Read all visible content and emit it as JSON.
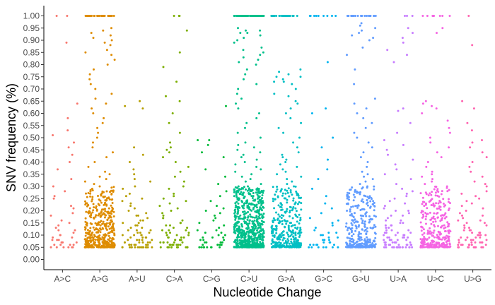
{
  "chart_data": {
    "type": "scatter",
    "title": "",
    "xlabel": "Nucleotide Change",
    "ylabel": "SNV frequency (%)",
    "categories": [
      "A>C",
      "A>G",
      "A>U",
      "C>A",
      "C>G",
      "C>U",
      "G>A",
      "G>C",
      "G>U",
      "U>A",
      "U>C",
      "U>G"
    ],
    "ylim": [
      0,
      1.04
    ],
    "yticks": [
      "0.00",
      "0.05",
      "0.10",
      "0.15",
      "0.20",
      "0.25",
      "0.30",
      "0.35",
      "0.40",
      "0.45",
      "0.50",
      "0.55",
      "0.60",
      "0.65",
      "0.70",
      "0.75",
      "0.80",
      "0.85",
      "0.90",
      "0.95",
      "1.00"
    ],
    "grid": false,
    "legend": "none",
    "colors": [
      "#F8766D",
      "#DE8C00",
      "#B79F00",
      "#7CAE00",
      "#00BA38",
      "#00C08B",
      "#00BFC4",
      "#00B4F0",
      "#619CFF",
      "#C77CFF",
      "#F564E3",
      "#FF64B0"
    ],
    "series": [
      {
        "category": "A>C",
        "y": [
          1.0,
          1.0,
          0.89,
          0.64,
          0.58,
          0.53,
          0.51,
          0.48,
          0.46,
          0.43,
          0.4,
          0.37,
          0.33,
          0.3,
          0.28,
          0.26,
          0.25,
          0.22,
          0.21,
          0.19,
          0.18,
          0.16,
          0.15,
          0.14,
          0.13,
          0.12,
          0.12,
          0.11,
          0.1,
          0.1,
          0.09,
          0.09,
          0.08,
          0.08,
          0.08,
          0.07,
          0.07,
          0.07,
          0.06,
          0.06,
          0.06,
          0.06,
          0.05,
          0.05,
          0.05,
          0.05,
          0.05,
          0.05
        ]
      },
      {
        "category": "A>U",
        "y": [
          0.65,
          0.63,
          0.62,
          0.46,
          0.43,
          0.4,
          0.37,
          0.35,
          0.33,
          0.32,
          0.3,
          0.29,
          0.27,
          0.26,
          0.25,
          0.24,
          0.23,
          0.22,
          0.21,
          0.2,
          0.19,
          0.18,
          0.18,
          0.17,
          0.16,
          0.16,
          0.15,
          0.15,
          0.14,
          0.14,
          0.13,
          0.13,
          0.12,
          0.12,
          0.12,
          0.11,
          0.11,
          0.11,
          0.1,
          0.1,
          0.1,
          0.1,
          0.09,
          0.09,
          0.09,
          0.09,
          0.08,
          0.08,
          0.08,
          0.08,
          0.08,
          0.07,
          0.07,
          0.07,
          0.07,
          0.07,
          0.07,
          0.06,
          0.06,
          0.06,
          0.06,
          0.06,
          0.06,
          0.06,
          0.06,
          0.05,
          0.05,
          0.05,
          0.05,
          0.05,
          0.05,
          0.05,
          0.05,
          0.05,
          0.05,
          0.05,
          0.05,
          0.05,
          0.05,
          0.05
        ]
      },
      {
        "category": "C>A",
        "y": [
          1.0,
          1.0,
          1.0,
          0.94,
          0.85,
          0.79,
          0.73,
          0.67,
          0.65,
          0.6,
          0.56,
          0.52,
          0.48,
          0.46,
          0.45,
          0.44,
          0.42,
          0.4,
          0.38,
          0.36,
          0.34,
          0.32,
          0.3,
          0.29,
          0.27,
          0.26,
          0.25,
          0.24,
          0.23,
          0.22,
          0.21,
          0.2,
          0.19,
          0.18,
          0.17,
          0.17,
          0.16,
          0.15,
          0.15,
          0.14,
          0.14,
          0.13,
          0.13,
          0.12,
          0.12,
          0.12,
          0.11,
          0.11,
          0.11,
          0.1,
          0.1,
          0.1,
          0.1,
          0.09,
          0.09,
          0.09,
          0.09,
          0.08,
          0.08,
          0.08,
          0.08,
          0.08,
          0.07,
          0.07,
          0.07,
          0.07,
          0.07,
          0.07,
          0.06,
          0.06,
          0.06,
          0.06,
          0.06,
          0.06,
          0.06,
          0.06,
          0.05,
          0.05,
          0.05,
          0.05,
          0.05,
          0.05,
          0.05,
          0.05,
          0.05,
          0.05,
          0.05,
          0.05
        ]
      },
      {
        "category": "C>G",
        "y": [
          0.63,
          0.49,
          0.49,
          0.47,
          0.44,
          0.42,
          0.37,
          0.34,
          0.31,
          0.28,
          0.26,
          0.24,
          0.22,
          0.21,
          0.2,
          0.19,
          0.18,
          0.17,
          0.16,
          0.15,
          0.14,
          0.13,
          0.12,
          0.12,
          0.11,
          0.11,
          0.1,
          0.1,
          0.09,
          0.09,
          0.09,
          0.08,
          0.08,
          0.08,
          0.07,
          0.07,
          0.07,
          0.07,
          0.06,
          0.06,
          0.06,
          0.06,
          0.06,
          0.06,
          0.05,
          0.05,
          0.05,
          0.05,
          0.05,
          0.05,
          0.05,
          0.05
        ]
      },
      {
        "category": "G>C",
        "y": [
          1.0,
          1.0,
          1.0,
          1.0,
          1.0,
          1.0,
          1.0,
          1.0,
          1.0,
          0.81,
          0.62,
          0.6,
          0.5,
          0.46,
          0.41,
          0.37,
          0.33,
          0.29,
          0.26,
          0.23,
          0.21,
          0.19,
          0.17,
          0.16,
          0.15,
          0.14,
          0.13,
          0.12,
          0.11,
          0.11,
          0.1,
          0.1,
          0.09,
          0.09,
          0.08,
          0.08,
          0.08,
          0.07,
          0.07,
          0.07,
          0.06,
          0.06,
          0.06,
          0.06,
          0.06,
          0.05,
          0.05,
          0.05,
          0.05,
          0.05,
          0.05,
          0.05
        ]
      },
      {
        "category": "U>A",
        "y": [
          1.0,
          1.0,
          1.0,
          0.95,
          0.93,
          0.91,
          0.89,
          0.86,
          0.84,
          0.81,
          0.62,
          0.61,
          0.56,
          0.52,
          0.49,
          0.47,
          0.45,
          0.43,
          0.41,
          0.39,
          0.37,
          0.35,
          0.33,
          0.31,
          0.29,
          0.28,
          0.27,
          0.26,
          0.25,
          0.24,
          0.23,
          0.22,
          0.21,
          0.2,
          0.2,
          0.19,
          0.18,
          0.18,
          0.17,
          0.16,
          0.16,
          0.15,
          0.15,
          0.14,
          0.14,
          0.14,
          0.13,
          0.13,
          0.12,
          0.12,
          0.12,
          0.11,
          0.11,
          0.11,
          0.11,
          0.1,
          0.1,
          0.1,
          0.1,
          0.09,
          0.09,
          0.09,
          0.09,
          0.09,
          0.08,
          0.08,
          0.08,
          0.08,
          0.08,
          0.08,
          0.07,
          0.07,
          0.07,
          0.07,
          0.07,
          0.07,
          0.07,
          0.06,
          0.06,
          0.06,
          0.06,
          0.06,
          0.06,
          0.06,
          0.06,
          0.06,
          0.05,
          0.05,
          0.05,
          0.05,
          0.05,
          0.05,
          0.05,
          0.05,
          0.05,
          0.05,
          0.05,
          0.05,
          0.05,
          0.05,
          0.05,
          0.05
        ]
      },
      {
        "category": "U>G",
        "y": [
          1.0,
          0.88,
          0.65,
          0.62,
          0.56,
          0.53,
          0.49,
          0.48,
          0.46,
          0.44,
          0.42,
          0.4,
          0.38,
          0.36,
          0.34,
          0.32,
          0.31,
          0.3,
          0.28,
          0.27,
          0.26,
          0.25,
          0.24,
          0.23,
          0.22,
          0.21,
          0.2,
          0.19,
          0.18,
          0.18,
          0.17,
          0.16,
          0.16,
          0.15,
          0.15,
          0.14,
          0.14,
          0.13,
          0.13,
          0.12,
          0.12,
          0.12,
          0.11,
          0.11,
          0.11,
          0.1,
          0.1,
          0.1,
          0.1,
          0.09,
          0.09,
          0.09,
          0.09,
          0.08,
          0.08,
          0.08,
          0.08,
          0.08,
          0.07,
          0.07,
          0.07,
          0.07,
          0.07,
          0.07,
          0.06,
          0.06,
          0.06,
          0.06,
          0.06,
          0.06,
          0.06,
          0.06,
          0.05,
          0.05,
          0.05,
          0.05,
          0.05,
          0.05,
          0.05,
          0.05,
          0.05,
          0.05
        ]
      }
    ],
    "series_distributions": [
      {
        "category": "A>G",
        "n_at_1": 40,
        "upper_tail": [
          0.95,
          0.94,
          0.93,
          0.92,
          0.91,
          0.9,
          0.89,
          0.88,
          0.86,
          0.85,
          0.84,
          0.82,
          0.8,
          0.78,
          0.76,
          0.74,
          0.72,
          0.7,
          0.68,
          0.66,
          0.64,
          0.62,
          0.6,
          0.58,
          0.56,
          0.54,
          0.52,
          0.5,
          0.48,
          0.46,
          0.44,
          0.42,
          0.4,
          0.38,
          0.36,
          0.35,
          0.34,
          0.33,
          0.32,
          0.31,
          0.3
        ],
        "bulk_count": 430,
        "bulk_min": 0.05,
        "bulk_max": 0.3
      },
      {
        "category": "C>U",
        "n_at_1": 70,
        "upper_tail": [
          0.95,
          0.94,
          0.94,
          0.93,
          0.93,
          0.92,
          0.91,
          0.9,
          0.89,
          0.87,
          0.86,
          0.85,
          0.84,
          0.83,
          0.82,
          0.81,
          0.8,
          0.78,
          0.76,
          0.74,
          0.72,
          0.7,
          0.68,
          0.66,
          0.64,
          0.62,
          0.6,
          0.58,
          0.56,
          0.54,
          0.52,
          0.5,
          0.48,
          0.47,
          0.46,
          0.45,
          0.44,
          0.43,
          0.42,
          0.41,
          0.4,
          0.39,
          0.38,
          0.37,
          0.36,
          0.35,
          0.34,
          0.33,
          0.32,
          0.31,
          0.3
        ],
        "bulk_count": 640,
        "bulk_min": 0.05,
        "bulk_max": 0.3
      },
      {
        "category": "G>A",
        "n_at_1": 30,
        "upper_tail": [
          0.78,
          0.77,
          0.76,
          0.75,
          0.75,
          0.74,
          0.73,
          0.73,
          0.72,
          0.7,
          0.68,
          0.67,
          0.65,
          0.64,
          0.62,
          0.6,
          0.58,
          0.56,
          0.54,
          0.52,
          0.5,
          0.48,
          0.46,
          0.44,
          0.43,
          0.42,
          0.41,
          0.4,
          0.39,
          0.38,
          0.37,
          0.36,
          0.35,
          0.34,
          0.33,
          0.32,
          0.31,
          0.3
        ],
        "bulk_count": 330,
        "bulk_min": 0.05,
        "bulk_max": 0.3
      },
      {
        "category": "G>U",
        "n_at_1": 24,
        "upper_tail": [
          0.97,
          0.96,
          0.95,
          0.94,
          0.93,
          0.92,
          0.91,
          0.9,
          0.87,
          0.84,
          0.78,
          0.72,
          0.66,
          0.64,
          0.62,
          0.6,
          0.58,
          0.56,
          0.54,
          0.52,
          0.5,
          0.48,
          0.46,
          0.44,
          0.42,
          0.4,
          0.38,
          0.36,
          0.35,
          0.34,
          0.33,
          0.32,
          0.31,
          0.3
        ],
        "bulk_count": 300,
        "bulk_min": 0.05,
        "bulk_max": 0.3
      },
      {
        "category": "U>C",
        "n_at_1": 8,
        "upper_tail": [
          0.95,
          0.93,
          0.65,
          0.64,
          0.63,
          0.62,
          0.6,
          0.57,
          0.54,
          0.52,
          0.5,
          0.48,
          0.46,
          0.44,
          0.42,
          0.4,
          0.38,
          0.36,
          0.35,
          0.34,
          0.33,
          0.32,
          0.31,
          0.3
        ],
        "bulk_count": 300,
        "bulk_min": 0.05,
        "bulk_max": 0.3
      }
    ]
  }
}
